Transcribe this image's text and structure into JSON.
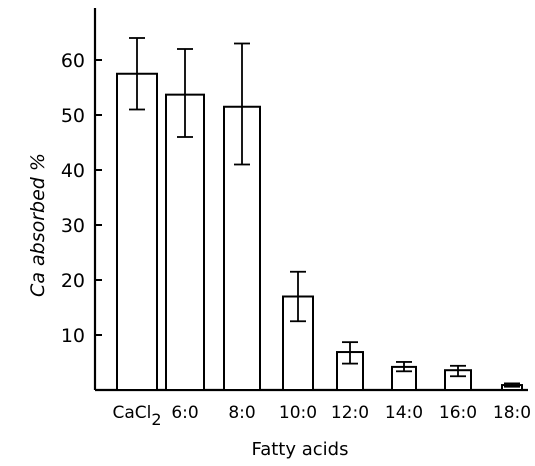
{
  "chart_data": {
    "type": "bar",
    "title": "",
    "xlabel": "Fatty acids",
    "ylabel": "Ca absorbed %",
    "categories": [
      "CaCl2",
      "6:0",
      "8:0",
      "10:0",
      "12:0",
      "14:0",
      "16:0",
      "18:0"
    ],
    "category_labels": [
      {
        "main": "CaCl",
        "sub": "2"
      },
      {
        "main": "6:0",
        "sub": ""
      },
      {
        "main": "8:0",
        "sub": ""
      },
      {
        "main": "10:0",
        "sub": ""
      },
      {
        "main": "12:0",
        "sub": ""
      },
      {
        "main": "14:0",
        "sub": ""
      },
      {
        "main": "16:0",
        "sub": ""
      },
      {
        "main": "18:0",
        "sub": ""
      }
    ],
    "values": [
      57.5,
      53.7,
      51.5,
      17.0,
      6.9,
      4.2,
      3.6,
      0.9
    ],
    "error_low": [
      51.0,
      46.0,
      41.0,
      12.5,
      4.8,
      3.4,
      2.5,
      0.6
    ],
    "error_high": [
      64.0,
      62.0,
      63.0,
      21.5,
      8.7,
      5.1,
      4.4,
      1.2
    ],
    "yticks": [
      10,
      20,
      30,
      40,
      50,
      60
    ],
    "ylim": [
      0,
      70
    ],
    "grid": false
  }
}
